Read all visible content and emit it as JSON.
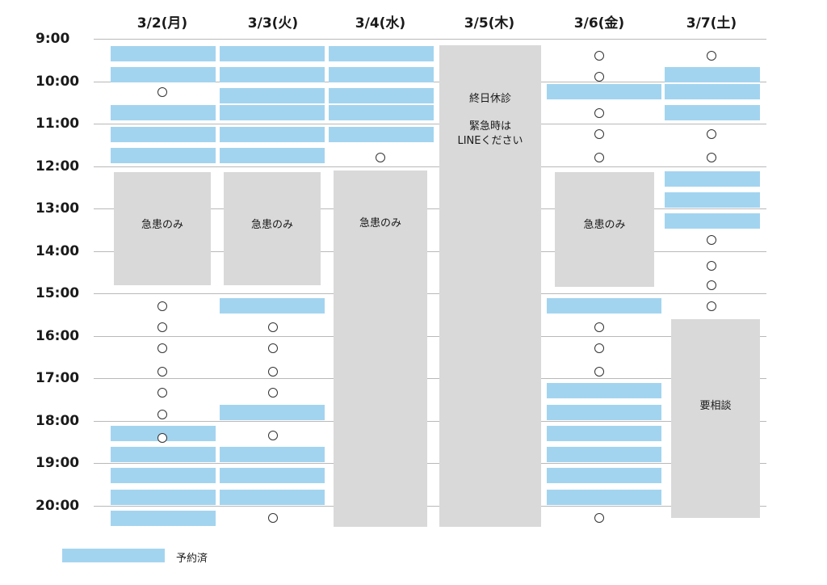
{
  "days": [
    {
      "label": "3/2(月)",
      "booked": [
        [
          9.15,
          9.55
        ],
        [
          9.65,
          10.05
        ],
        [
          10.55,
          10.95
        ],
        [
          11.05,
          11.45
        ],
        [
          11.55,
          11.95
        ],
        [
          18.1,
          18.5
        ],
        [
          18.6,
          19.0
        ],
        [
          19.1,
          19.5
        ],
        [
          19.6,
          20.0
        ],
        [
          20.1,
          20.5
        ]
      ],
      "available": [
        10.25,
        15.3,
        15.8,
        16.3,
        16.85,
        17.35,
        17.85,
        18.4
      ],
      "blocks": [
        {
          "start": 12.15,
          "end": 14.8,
          "line1": "急患のみ"
        }
      ]
    },
    {
      "label": "3/3(火)",
      "booked": [
        [
          9.15,
          9.55
        ],
        [
          9.65,
          10.05
        ],
        [
          10.15,
          10.55
        ],
        [
          10.55,
          10.95
        ],
        [
          11.05,
          11.45
        ],
        [
          11.55,
          11.95
        ],
        [
          15.1,
          15.5
        ],
        [
          17.6,
          18.0
        ],
        [
          18.6,
          19.0
        ],
        [
          19.1,
          19.5
        ],
        [
          19.6,
          20.0
        ]
      ],
      "available": [
        15.8,
        16.3,
        16.85,
        17.35,
        18.35,
        20.3
      ],
      "blocks": [
        {
          "start": 12.15,
          "end": 14.8,
          "line1": "急患のみ"
        }
      ]
    },
    {
      "label": "3/4(水)",
      "booked": [
        [
          9.15,
          9.55
        ],
        [
          9.65,
          10.05
        ],
        [
          10.15,
          10.55
        ],
        [
          10.55,
          10.95
        ],
        [
          11.05,
          11.45
        ]
      ],
      "available": [
        11.8
      ],
      "blocks": [
        {
          "start": 12.1,
          "end": 20.5,
          "line1": "急患のみ"
        }
      ]
    },
    {
      "label": "3/5(木)",
      "booked": [],
      "available": [],
      "blocks": [
        {
          "start": 9.15,
          "end": 20.5,
          "line1": "終日休診",
          "line2": "緊急時は",
          "line3": "LINEください"
        }
      ]
    },
    {
      "label": "3/6(金)",
      "booked": [
        [
          10.05,
          10.45
        ],
        [
          15.1,
          15.5
        ],
        [
          17.1,
          17.5
        ],
        [
          17.6,
          18.0
        ],
        [
          18.1,
          18.5
        ],
        [
          18.6,
          19.0
        ],
        [
          19.1,
          19.5
        ],
        [
          19.6,
          20.0
        ]
      ],
      "available": [
        9.4,
        9.9,
        10.75,
        11.25,
        11.8,
        15.8,
        16.3,
        16.85,
        20.3
      ],
      "blocks": [
        {
          "start": 12.15,
          "end": 14.85,
          "line1": "急患のみ"
        }
      ]
    },
    {
      "label": "3/7(土)",
      "booked": [
        [
          9.65,
          10.05
        ],
        [
          10.05,
          10.45
        ],
        [
          10.55,
          10.95
        ],
        [
          12.1,
          12.5
        ],
        [
          12.6,
          13.0
        ],
        [
          13.1,
          13.5
        ]
      ],
      "available": [
        9.4,
        11.25,
        11.8,
        13.75,
        14.35,
        14.8,
        15.3
      ],
      "blocks": [
        {
          "start": 15.6,
          "end": 20.3,
          "line1": "要相談"
        }
      ]
    }
  ],
  "time_labels": [
    "9:00",
    "10:00",
    "11:00",
    "12:00",
    "13:00",
    "14:00",
    "15:00",
    "16:00",
    "17:00",
    "18:00",
    "19:00",
    "20:00"
  ],
  "legend": {
    "booked_label": "予約済"
  },
  "colors": {
    "booked": "#a3d4ef",
    "blocked": "#d9d9d9",
    "gridline": "#b9b9b9"
  }
}
